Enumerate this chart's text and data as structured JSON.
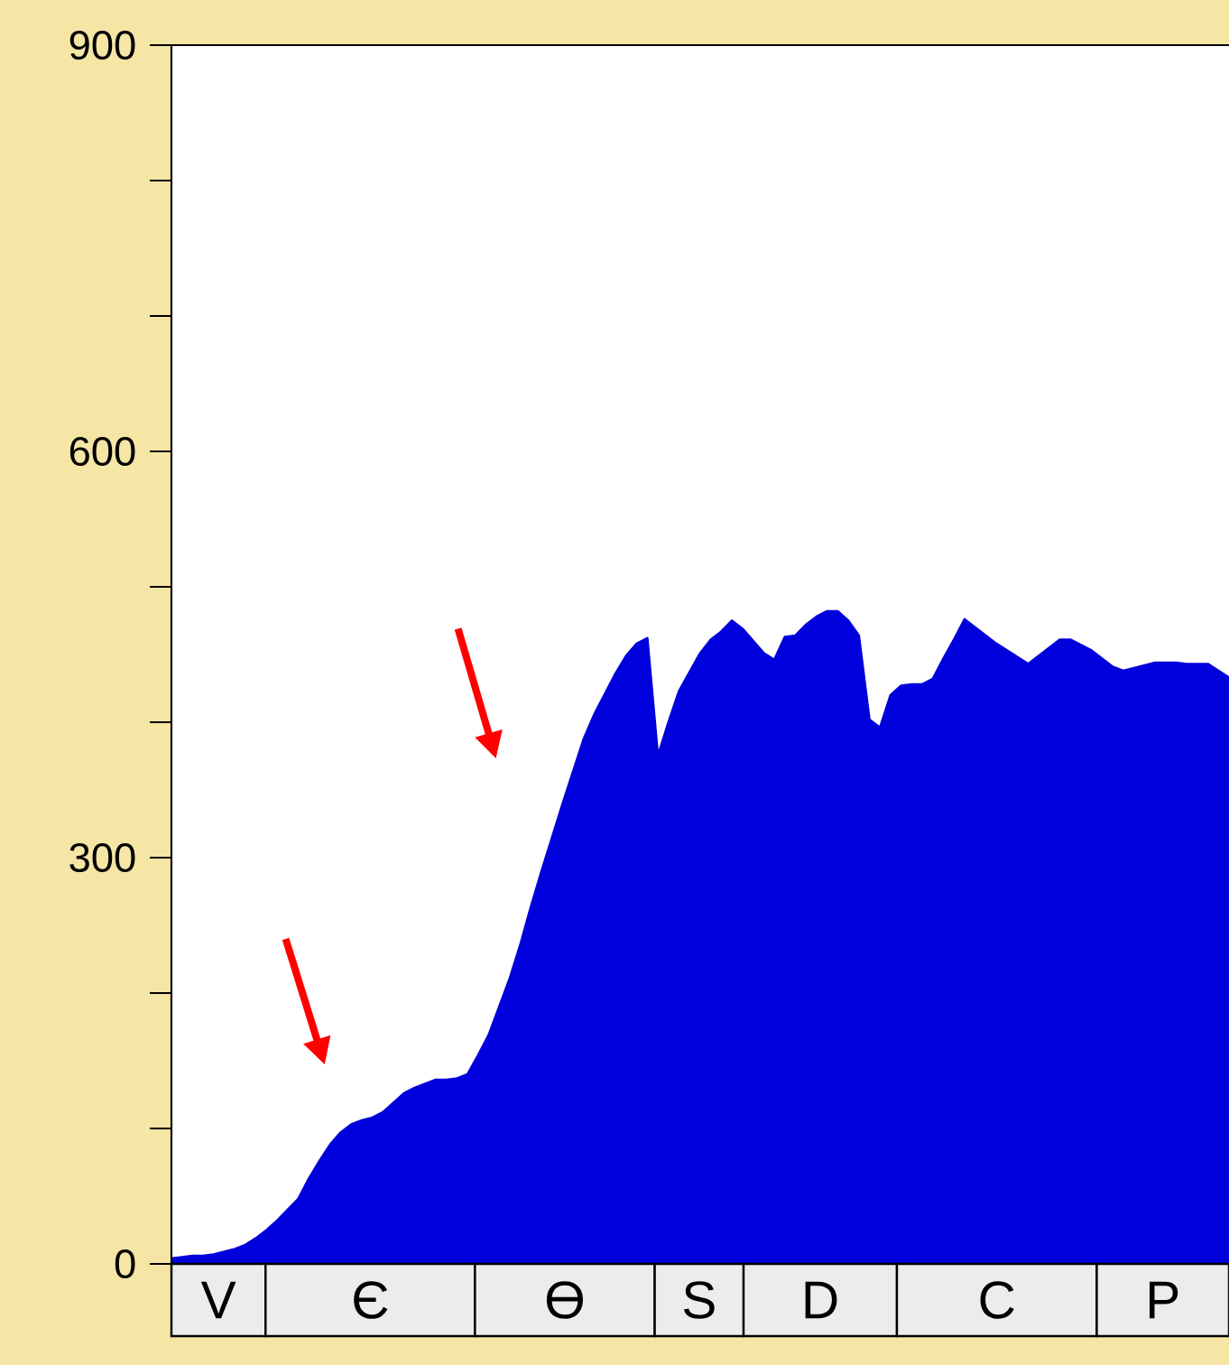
{
  "chart_data": {
    "type": "area",
    "color": "#0000dc",
    "categories": [
      null,
      null,
      null,
      null,
      null,
      null,
      null,
      null,
      null,
      null,
      null,
      null,
      null,
      null,
      null,
      null,
      null,
      null,
      null,
      null,
      null,
      null,
      null,
      null,
      null,
      null,
      null,
      null,
      null,
      null,
      null,
      null,
      null,
      null,
      null,
      null,
      null,
      null,
      null,
      null,
      null,
      null,
      null,
      null,
      null,
      null,
      null,
      null,
      null,
      null,
      null,
      null,
      null,
      null,
      null,
      null,
      null,
      null,
      null,
      null,
      null,
      null,
      null,
      null,
      null,
      null,
      null,
      null,
      null,
      null,
      null,
      null,
      null,
      null,
      null,
      null,
      null,
      null,
      null,
      null,
      null,
      null,
      null,
      null,
      null,
      null,
      null,
      null,
      null,
      null,
      null,
      null,
      null,
      null,
      null,
      null,
      null,
      null,
      null,
      null,
      null
    ],
    "values": [
      4,
      5,
      6,
      6,
      7,
      9,
      11,
      14,
      19,
      25,
      32,
      40,
      48,
      63,
      76,
      88,
      97,
      103,
      106,
      108,
      112,
      119,
      126,
      130,
      133,
      136,
      136,
      137,
      140,
      154,
      169,
      190,
      211,
      236,
      264,
      290,
      315,
      340,
      364,
      388,
      406,
      421,
      436,
      449,
      458,
      462,
      375,
      400,
      423,
      437,
      451,
      461,
      467,
      475,
      469,
      460,
      451,
      446,
      463,
      464,
      472,
      478,
      482,
      482,
      475,
      464,
      402,
      396,
      420,
      427,
      428,
      428,
      432,
      447,
      461,
      476,
      470,
      464,
      458,
      453,
      448,
      443,
      449,
      455,
      461,
      461,
      457,
      453,
      447,
      441,
      438,
      440,
      442,
      444,
      444,
      444,
      443,
      443,
      443,
      438,
      433
    ],
    "ylim": [
      0,
      900
    ],
    "yticks": [
      0,
      {
        "value": 100,
        "label": null
      },
      {
        "value": 200,
        "label": null
      },
      300,
      {
        "value": 400,
        "label": null
      },
      {
        "value": 500,
        "label": null
      },
      600,
      {
        "value": 700,
        "label": null
      },
      {
        "value": 800,
        "label": null
      },
      900
    ],
    "tick_labels": "y",
    "annotations": [
      "V",
      "Є",
      "Ө",
      "S",
      "D",
      "C",
      "P"
    ]
  }
}
